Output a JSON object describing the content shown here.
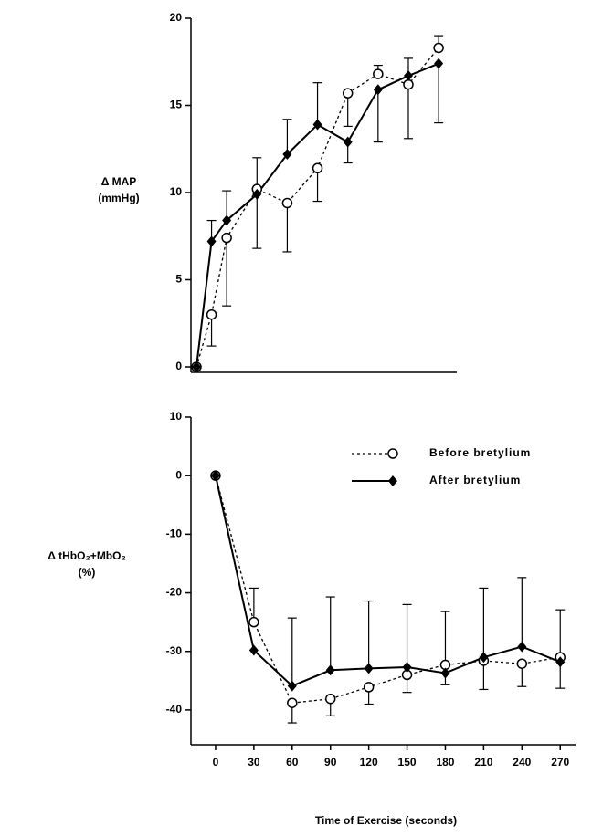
{
  "chart_data": [
    {
      "type": "line",
      "ylabel": [
        "Δ MAP",
        "(mmHg)"
      ],
      "x": [
        0,
        15,
        30,
        60,
        90,
        120,
        150,
        180,
        210,
        240
      ],
      "xlim": [
        0,
        258
      ],
      "ylim": [
        0,
        20
      ],
      "yticks": [
        0,
        5,
        10,
        15,
        20
      ],
      "series": [
        {
          "style": "dashed",
          "marker": "open-circle",
          "color": "#000000",
          "values": [
            0,
            3.0,
            7.4,
            10.2,
            9.4,
            11.4,
            15.7,
            16.8,
            16.2,
            18.3
          ],
          "error_up": [
            null,
            null,
            null,
            null,
            null,
            null,
            null,
            0.5,
            null,
            0.7
          ],
          "error_down": [
            null,
            1.8,
            3.9,
            3.4,
            2.8,
            1.9,
            1.9,
            null,
            3.1,
            null
          ]
        },
        {
          "style": "solid",
          "marker": "filled-diamond",
          "color": "#000000",
          "values": [
            0,
            7.2,
            8.4,
            9.9,
            12.2,
            13.9,
            12.9,
            15.9,
            16.7,
            17.4
          ],
          "error_up": [
            null,
            1.2,
            1.7,
            2.1,
            2.0,
            2.4,
            null,
            null,
            1.0,
            null
          ],
          "error_down": [
            null,
            null,
            null,
            null,
            null,
            null,
            1.2,
            3.0,
            null,
            3.4
          ]
        }
      ]
    },
    {
      "type": "line",
      "ylabel": [
        "Δ tHbO₂+MbO₂",
        "(%)"
      ],
      "xlabel": "Time of Exercise (seconds)",
      "x": [
        0,
        30,
        60,
        90,
        120,
        150,
        180,
        210,
        240,
        270
      ],
      "xlim": [
        -15,
        282
      ],
      "xticks": [
        0,
        30,
        60,
        90,
        120,
        150,
        180,
        210,
        240,
        270
      ],
      "ylim": [
        -45,
        10
      ],
      "yticks": [
        -40,
        -30,
        -20,
        -10,
        0,
        10
      ],
      "legend": "upper-right",
      "series": [
        {
          "name": "Before bretylium",
          "style": "dashed",
          "marker": "open-circle",
          "color": "#000000",
          "values": [
            0,
            -25,
            -38.8,
            -38.1,
            -36.1,
            -34,
            -32.3,
            -31.6,
            -32.1,
            -31
          ],
          "error_up": [
            null,
            5.8,
            null,
            null,
            null,
            null,
            null,
            null,
            null,
            8.1
          ],
          "error_down": [
            null,
            null,
            3.4,
            2.9,
            2.9,
            3.0,
            3.4,
            4.9,
            3.9,
            null
          ]
        },
        {
          "name": "After bretylium",
          "style": "solid",
          "marker": "filled-diamond",
          "color": "#000000",
          "values": [
            0,
            -29.8,
            -35.9,
            -33.2,
            -32.9,
            -32.7,
            -33.7,
            -31,
            -29.2,
            -31.8
          ],
          "error_up": [
            null,
            null,
            11.6,
            12.5,
            11.5,
            10.7,
            10.5,
            11.8,
            11.8,
            null
          ],
          "error_down": [
            null,
            null,
            null,
            null,
            null,
            null,
            null,
            null,
            null,
            4.5
          ]
        }
      ]
    }
  ]
}
